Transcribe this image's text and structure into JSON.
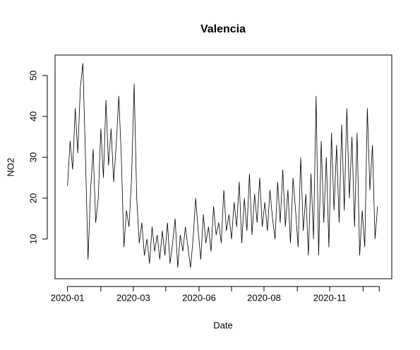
{
  "chart_data": {
    "type": "line",
    "title": "Valencia",
    "x_label": "Date",
    "y_label": "NO2",
    "x": [
      0,
      3,
      6,
      9,
      12,
      15,
      18,
      21,
      24,
      27,
      30,
      33,
      36,
      39,
      42,
      45,
      48,
      51,
      54,
      57,
      60,
      63,
      66,
      69,
      72,
      75,
      78,
      81,
      84,
      87,
      90,
      93,
      96,
      99,
      102,
      105,
      108,
      111,
      114,
      117,
      120,
      123,
      126,
      129,
      132,
      135,
      138,
      141,
      144,
      147,
      150,
      153,
      156,
      159,
      162,
      165,
      168,
      171,
      174,
      177,
      180,
      183,
      186,
      189,
      192,
      195,
      198,
      201,
      204,
      207,
      210,
      213,
      216,
      219,
      222,
      225,
      228,
      231,
      234,
      237,
      240,
      243,
      246,
      249,
      252,
      255,
      258,
      261,
      264,
      267,
      270,
      273,
      276,
      279,
      282,
      285,
      288,
      291,
      294,
      297,
      300,
      303,
      306,
      309,
      312,
      315,
      318,
      321,
      324,
      327,
      330,
      333,
      336,
      339,
      342,
      345,
      348,
      351,
      354,
      357,
      360,
      363
    ],
    "series": [
      {
        "name": "NO2",
        "color": "#000000",
        "values": [
          23,
          34,
          27,
          42,
          31,
          47,
          53,
          30,
          5,
          22,
          32,
          14,
          20,
          37,
          25,
          44,
          28,
          37,
          24,
          33,
          45,
          30,
          8,
          17,
          13,
          25,
          48,
          20,
          9,
          14,
          6,
          10,
          4,
          13,
          7,
          11,
          5,
          12,
          6,
          14,
          4,
          9,
          15,
          3,
          11,
          7,
          13,
          8,
          3,
          10,
          20,
          12,
          5,
          16,
          9,
          13,
          7,
          18,
          11,
          14,
          9,
          22,
          12,
          16,
          10,
          19,
          13,
          24,
          9,
          20,
          12,
          26,
          11,
          21,
          14,
          25,
          13,
          19,
          12,
          22,
          15,
          10,
          24,
          14,
          27,
          13,
          22,
          9,
          25,
          17,
          8,
          30,
          12,
          21,
          6,
          26,
          10,
          45,
          6,
          34,
          14,
          30,
          8,
          36,
          17,
          33,
          14,
          38,
          17,
          42,
          20,
          35,
          13,
          36,
          6,
          17,
          8,
          42,
          22,
          33,
          10,
          18
        ]
      }
    ],
    "xlim": [
      -14.6,
      379.6
    ],
    "xticks": [
      {
        "value": 0,
        "label": "2020-01"
      },
      {
        "value": 39,
        "label": null
      },
      {
        "value": 77,
        "label": "2020-03"
      },
      {
        "value": 115,
        "label": null
      },
      {
        "value": 154,
        "label": "2020-06"
      },
      {
        "value": 192,
        "label": null
      },
      {
        "value": 230,
        "label": "2020-08"
      },
      {
        "value": 269,
        "label": null
      },
      {
        "value": 307,
        "label": "2020-11"
      },
      {
        "value": 346,
        "label": null
      },
      {
        "value": 365,
        "label": null
      }
    ],
    "ylim": [
      0.3,
      55.0
    ],
    "yticks": [
      10,
      20,
      30,
      40,
      50
    ]
  }
}
